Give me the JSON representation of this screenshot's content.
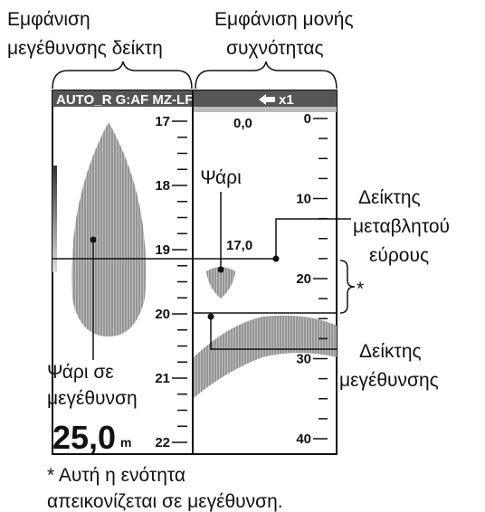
{
  "labels": {
    "left_view": [
      "Εμφάνιση",
      "μεγέθυνσης δείκτη"
    ],
    "right_view": [
      "Εμφάνιση μονής",
      "συχνότητας"
    ]
  },
  "header": {
    "mode": "AUTO_R G:AF MZ-LF",
    "zoom": "x1"
  },
  "left_scale": [
    "17",
    "18",
    "19",
    "20",
    "21",
    "22"
  ],
  "right_scale": [
    "0",
    "10",
    "20",
    "30",
    "40"
  ],
  "readouts": {
    "top": "0,0",
    "vrm": "17,0",
    "range": "25,0",
    "unit": "m"
  },
  "callouts": {
    "fish": "Ψάρι",
    "vrm": [
      "Δείκτης",
      "μεταβλητού",
      "εύρους"
    ],
    "zoom_section": "*",
    "zoom_marker": [
      "Δείκτης",
      "μεγέθυνσης"
    ],
    "zoomed_fish": [
      "Ψάρι σε",
      "μεγέθυνση"
    ]
  },
  "footnote": [
    "* Αυτή η ενότητα",
    "απεικονίζεται σε μεγέθυνση."
  ]
}
